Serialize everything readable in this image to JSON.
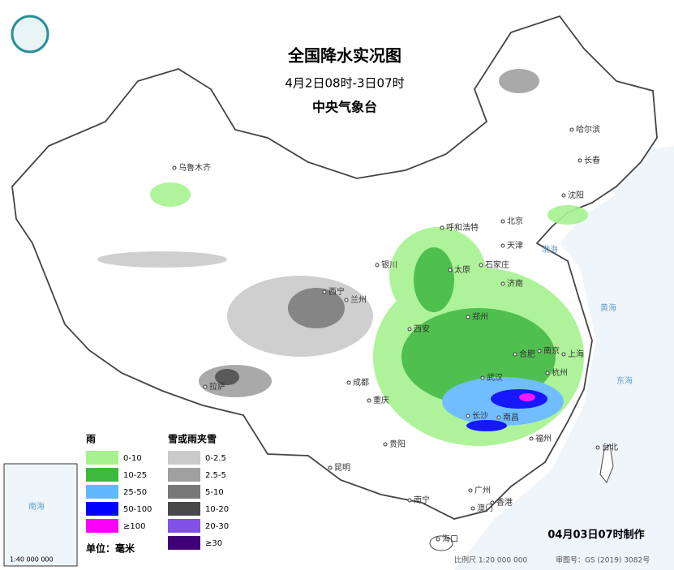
{
  "header": {
    "title": "全国降水实况图",
    "subtitle": "4月2日08时-3日07时",
    "issuer": "中央气象台"
  },
  "legend": {
    "rain_title": "雨",
    "rain": [
      {
        "label": "0-10",
        "color": "#a6f28f"
      },
      {
        "label": "10-25",
        "color": "#3dba3d"
      },
      {
        "label": "25-50",
        "color": "#61b8ff"
      },
      {
        "label": "50-100",
        "color": "#0000fe"
      },
      {
        "label": "≥100",
        "color": "#fa00fa"
      }
    ],
    "snow_title": "雪或雨夹雪",
    "snow": [
      {
        "label": "0-2.5",
        "color": "#cacaca"
      },
      {
        "label": "2.5-5",
        "color": "#a0a0a0"
      },
      {
        "label": "5-10",
        "color": "#787878"
      },
      {
        "label": "10-20",
        "color": "#484848"
      },
      {
        "label": "20-30",
        "color": "#8050e8"
      },
      {
        "label": "≥30",
        "color": "#400078"
      }
    ],
    "unit": "单位：毫米"
  },
  "cities": [
    "乌鲁木齐",
    "呼和浩特",
    "北京",
    "天津",
    "哈尔滨",
    "长春",
    "沈阳",
    "银川",
    "太原",
    "石家庄",
    "济南",
    "西宁",
    "兰州",
    "郑州",
    "西安",
    "合肥",
    "南京",
    "上海",
    "武汉",
    "杭州",
    "成都",
    "重庆",
    "拉萨",
    "长沙",
    "南昌",
    "福州",
    "贵阳",
    "昆明",
    "台北",
    "南宁",
    "广州",
    "香港",
    "澳门",
    "海口"
  ],
  "seas": [
    "渤海",
    "黄海",
    "东海"
  ],
  "inset": {
    "label": "南海",
    "scale": "1:40 000 000"
  },
  "footer": {
    "made": "04月03日07时制作",
    "scale": "比例尺 1:20 000 000",
    "approval": "审图号：GS (2019) 3082号"
  }
}
